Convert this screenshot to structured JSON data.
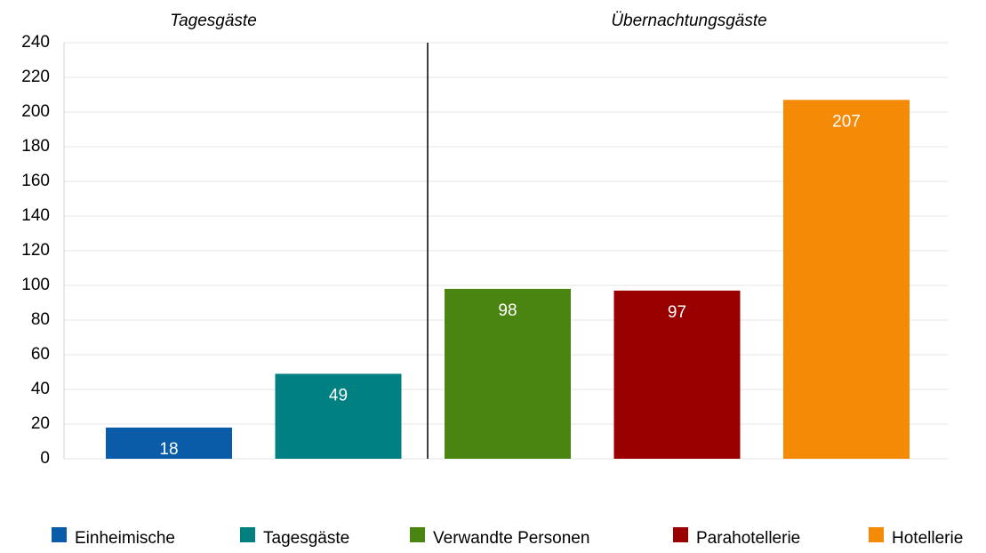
{
  "chart_data": {
    "type": "bar",
    "groups": [
      "Tagesgäste",
      "Übernachtungsgäste"
    ],
    "categories": [
      "Einheimische",
      "Tagesgäste",
      "Verwandte Personen",
      "Parahotellerie",
      "Hotellerie"
    ],
    "values": [
      18,
      49,
      98,
      97,
      207
    ],
    "colors": [
      "#0b5ca8",
      "#008080",
      "#4b8511",
      "#990000",
      "#f58a07"
    ],
    "ylim": [
      0,
      240
    ],
    "yticks": [
      0,
      20,
      40,
      60,
      80,
      100,
      120,
      140,
      160,
      180,
      200,
      220,
      240
    ],
    "grid": true,
    "legend": "bottom"
  }
}
